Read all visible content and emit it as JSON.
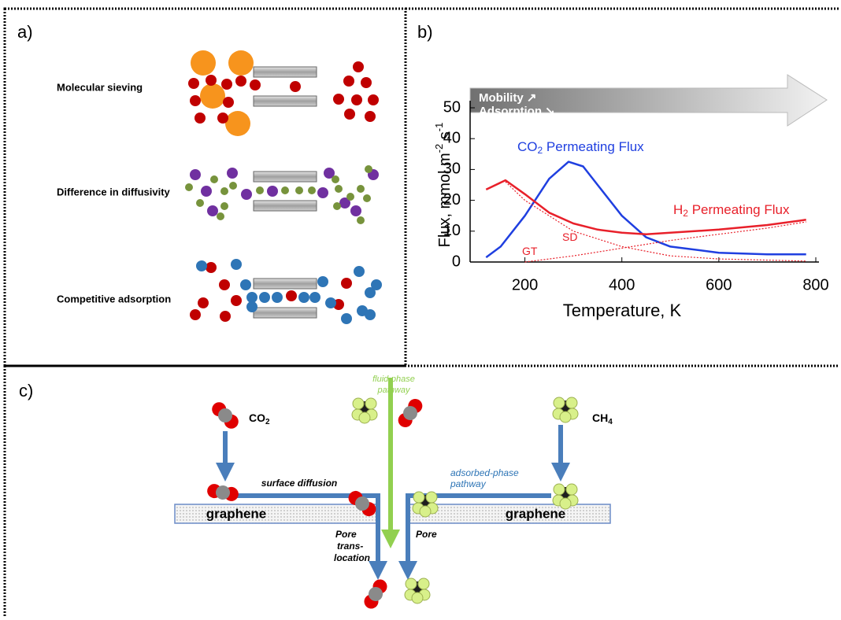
{
  "panel_a": {
    "label": "a)",
    "rows": [
      "Molecular sieving",
      "Difference in diffusivity",
      "Competitive adsorption"
    ]
  },
  "panel_b": {
    "label": "b)",
    "arrow": [
      "Mobility ↗",
      "Adsorption ↘"
    ],
    "chart_data": {
      "type": "line",
      "x_label": "Temperature, K",
      "y_label": {
        "text": "Flux, mmol m",
        "sup1": "-2",
        "mid": " s",
        "sup2": "-1"
      },
      "xlim": [
        100,
        800
      ],
      "ylim": [
        0,
        50
      ],
      "xticks": [
        200,
        400,
        600,
        800
      ],
      "yticks": [
        0,
        10,
        20,
        30,
        40,
        50
      ],
      "series": [
        {
          "label": {
            "main": "CO",
            "sub": "2",
            "rest": " Permeating Flux"
          },
          "color": "#1f3fe0",
          "dash": false,
          "x": [
            120,
            150,
            200,
            250,
            290,
            320,
            350,
            400,
            450,
            500,
            600,
            700,
            780
          ],
          "values": [
            1.5,
            5,
            15,
            27,
            32.5,
            31,
            25,
            15,
            8,
            5,
            3,
            2.5,
            2.5
          ]
        },
        {
          "label": {
            "main": "H",
            "sub": "2",
            "rest": " Permeating Flux"
          },
          "color": "#e8202a",
          "dash": false,
          "x": [
            120,
            160,
            200,
            250,
            300,
            350,
            400,
            450,
            500,
            600,
            700,
            780
          ],
          "values": [
            23.5,
            26.5,
            22,
            16,
            12.5,
            10.5,
            9.5,
            9,
            9.5,
            10.5,
            12,
            13.7
          ]
        },
        {
          "label": {
            "main": "SD"
          },
          "color": "#e8202a",
          "dash": true,
          "x": [
            160,
            200,
            300,
            400,
            500,
            600,
            780
          ],
          "values": [
            26,
            20,
            10,
            5,
            2,
            1,
            0.3
          ]
        },
        {
          "label": {
            "main": "GT"
          },
          "color": "#e8202a",
          "dash": true,
          "x": [
            200,
            300,
            400,
            500,
            600,
            700,
            780
          ],
          "values": [
            0,
            2,
            4.5,
            7,
            9,
            11,
            13
          ]
        }
      ]
    }
  },
  "panel_c": {
    "label": "c)",
    "co2": {
      "main": "CO",
      "sub": "2"
    },
    "ch4": {
      "main": "CH",
      "sub": "4"
    },
    "fluid": [
      "fluid-phase",
      "pathway"
    ],
    "surface": "surface diffusion",
    "adsorbed": [
      "adsorbed-phase",
      "pathway"
    ],
    "graphene": [
      "graphene",
      "graphene"
    ],
    "pore_left": [
      "Pore",
      "trans-",
      "location"
    ],
    "pore_right": "Pore"
  }
}
